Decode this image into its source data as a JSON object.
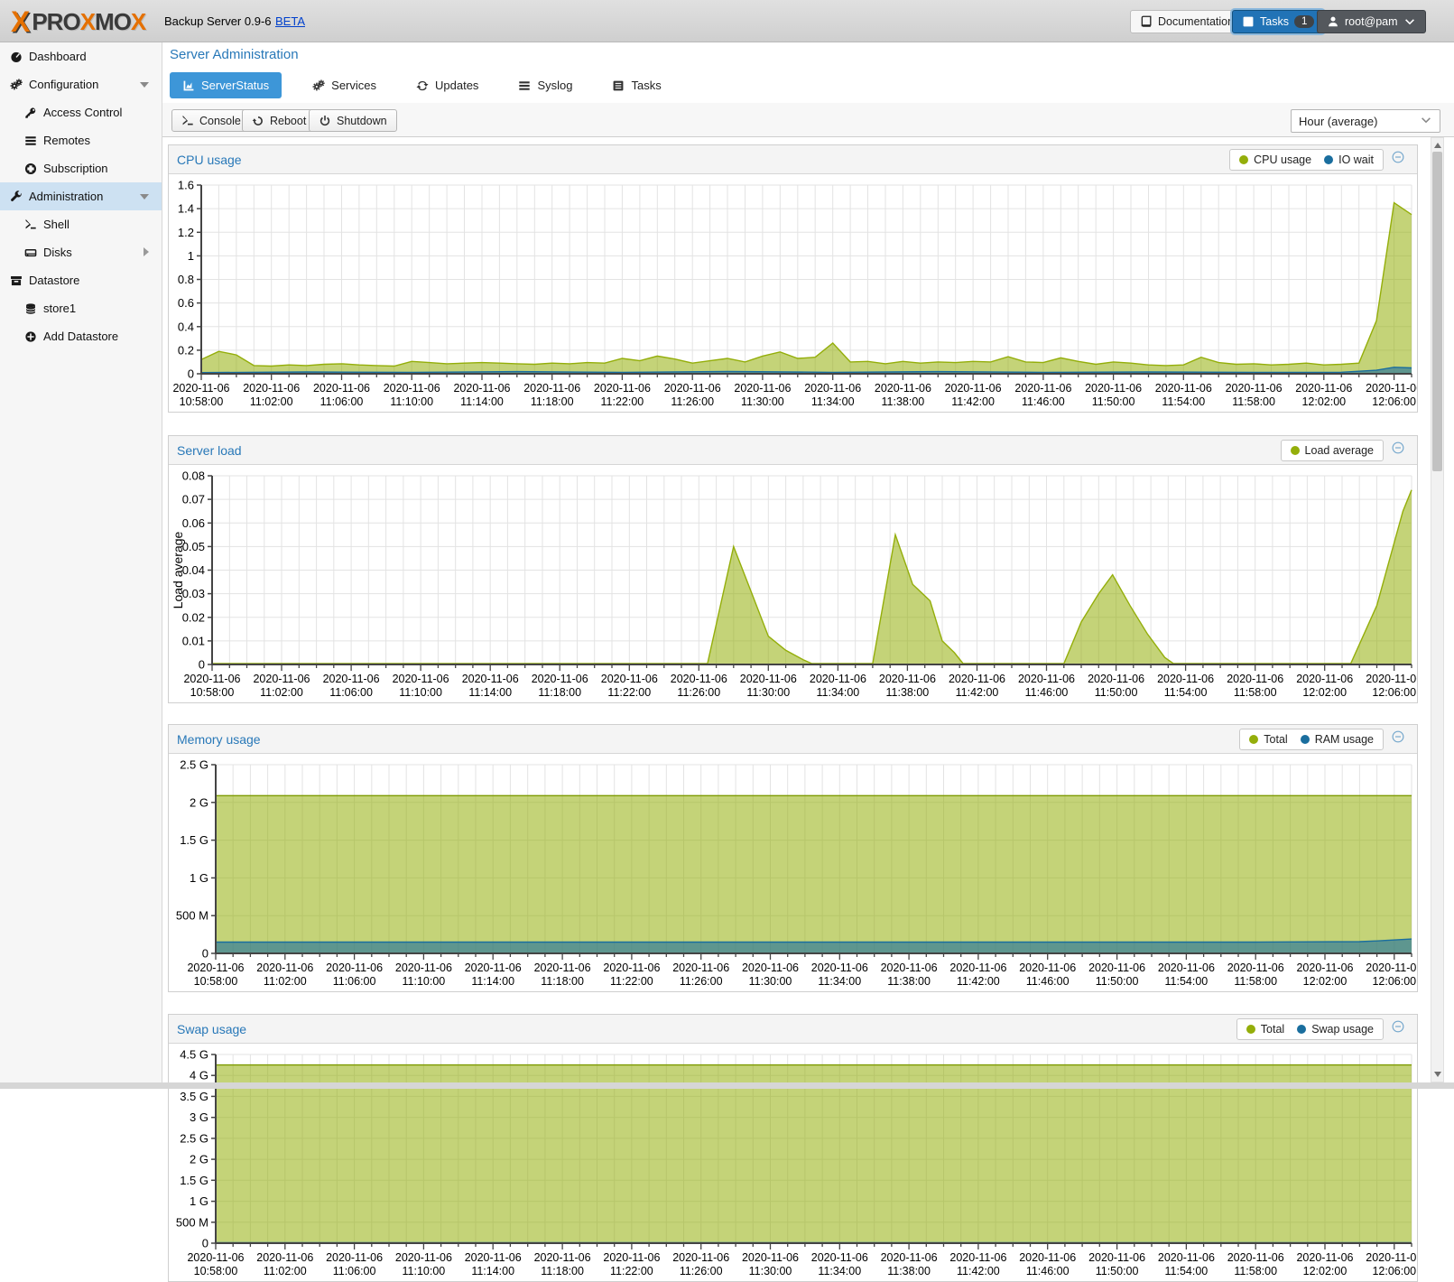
{
  "header": {
    "logo_segments": {
      "s1": "PRO",
      "s2": "X",
      "s3": "MO",
      "s4": "X"
    },
    "product": "Backup Server 0.9-6",
    "beta": "BETA",
    "documentation_label": "Documentation",
    "tasks_label": "Tasks",
    "tasks_badge": "1",
    "user_label": "root@pam"
  },
  "sidebar": {
    "items": [
      {
        "label": "Dashboard",
        "icon": "gauge"
      },
      {
        "label": "Configuration",
        "icon": "gears"
      },
      {
        "label": "Access Control",
        "icon": "key"
      },
      {
        "label": "Remotes",
        "icon": "list-rows"
      },
      {
        "label": "Subscription",
        "icon": "lifering"
      },
      {
        "label": "Administration",
        "icon": "wrench"
      },
      {
        "label": "Shell",
        "icon": "terminal"
      },
      {
        "label": "Disks",
        "icon": "disk"
      },
      {
        "label": "Datastore",
        "icon": "archive"
      },
      {
        "label": "store1",
        "icon": "database"
      },
      {
        "label": "Add Datastore",
        "icon": "plus-circle"
      }
    ]
  },
  "main": {
    "title": "Server Administration",
    "tabs": [
      {
        "label": "ServerStatus",
        "icon": "chart-area",
        "active": true
      },
      {
        "label": "Services",
        "icon": "gears"
      },
      {
        "label": "Updates",
        "icon": "refresh"
      },
      {
        "label": "Syslog",
        "icon": "list-rows"
      },
      {
        "label": "Tasks",
        "icon": "task-list"
      }
    ],
    "toolbar": {
      "console_label": "Console",
      "reboot_label": "Reboot",
      "shutdown_label": "Shutdown",
      "range_value": "Hour (average)"
    }
  },
  "panels": [
    {
      "title": "CPU usage",
      "legend": [
        {
          "label": "CPU usage",
          "color": "#94ae0a"
        },
        {
          "label": "IO wait",
          "color": "#1a6e9e"
        }
      ]
    },
    {
      "title": "Server load",
      "legend": [
        {
          "label": "Load average",
          "color": "#94ae0a"
        }
      ]
    },
    {
      "title": "Memory usage",
      "legend": [
        {
          "label": "Total",
          "color": "#94ae0a"
        },
        {
          "label": "RAM usage",
          "color": "#1a6e9e"
        }
      ]
    },
    {
      "title": "Swap usage",
      "legend": [
        {
          "label": "Total",
          "color": "#94ae0a"
        },
        {
          "label": "Swap usage",
          "color": "#1a6e9e"
        }
      ]
    }
  ],
  "chart_data": [
    {
      "type": "area",
      "title": "CPU usage",
      "ylabel": "",
      "ylim": [
        0,
        1.6
      ],
      "left_gutter": 36,
      "yticks": [
        {
          "v": 0,
          "l": "0"
        },
        {
          "v": 0.2,
          "l": "0.2"
        },
        {
          "v": 0.4,
          "l": "0.4"
        },
        {
          "v": 0.6,
          "l": "0.6"
        },
        {
          "v": 0.8,
          "l": "0.8"
        },
        {
          "v": 1,
          "l": "1"
        },
        {
          "v": 1.2,
          "l": "1.2"
        },
        {
          "v": 1.4,
          "l": "1.4"
        },
        {
          "v": 1.6,
          "l": "1.6"
        }
      ],
      "x_range": [
        0,
        69
      ],
      "x_date": "2020-11-06",
      "x_tick_times": [
        "10:58:00",
        "11:02:00",
        "11:06:00",
        "11:10:00",
        "11:14:00",
        "11:18:00",
        "11:22:00",
        "11:26:00",
        "11:30:00",
        "11:34:00",
        "11:38:00",
        "11:42:00",
        "11:46:00",
        "11:50:00",
        "11:54:00",
        "11:58:00",
        "12:02:00",
        "12:06:00"
      ],
      "series": [
        {
          "name": "CPU usage",
          "color": "#94ae0a",
          "fill": "rgba(148,174,10,0.55)",
          "points": [
            [
              0,
              0.12
            ],
            [
              1,
              0.19
            ],
            [
              2,
              0.16
            ],
            [
              3,
              0.07
            ],
            [
              4,
              0.065
            ],
            [
              5,
              0.075
            ],
            [
              6,
              0.07
            ],
            [
              7,
              0.08
            ],
            [
              8,
              0.085
            ],
            [
              9,
              0.075
            ],
            [
              10,
              0.07
            ],
            [
              11,
              0.065
            ],
            [
              12,
              0.105
            ],
            [
              13,
              0.095
            ],
            [
              14,
              0.085
            ],
            [
              15,
              0.09
            ],
            [
              16,
              0.095
            ],
            [
              17,
              0.09
            ],
            [
              18,
              0.085
            ],
            [
              19,
              0.08
            ],
            [
              20,
              0.09
            ],
            [
              21,
              0.085
            ],
            [
              22,
              0.095
            ],
            [
              23,
              0.09
            ],
            [
              24,
              0.13
            ],
            [
              25,
              0.11
            ],
            [
              26,
              0.15
            ],
            [
              27,
              0.125
            ],
            [
              28,
              0.09
            ],
            [
              29,
              0.11
            ],
            [
              30,
              0.13
            ],
            [
              31,
              0.1
            ],
            [
              32,
              0.15
            ],
            [
              33,
              0.185
            ],
            [
              34,
              0.13
            ],
            [
              35,
              0.14
            ],
            [
              36,
              0.26
            ],
            [
              37,
              0.1
            ],
            [
              38,
              0.105
            ],
            [
              39,
              0.085
            ],
            [
              40,
              0.105
            ],
            [
              41,
              0.09
            ],
            [
              42,
              0.1
            ],
            [
              43,
              0.095
            ],
            [
              44,
              0.105
            ],
            [
              45,
              0.1
            ],
            [
              46,
              0.145
            ],
            [
              47,
              0.1
            ],
            [
              48,
              0.095
            ],
            [
              49,
              0.135
            ],
            [
              50,
              0.105
            ],
            [
              51,
              0.08
            ],
            [
              52,
              0.1
            ],
            [
              53,
              0.09
            ],
            [
              54,
              0.075
            ],
            [
              55,
              0.07
            ],
            [
              56,
              0.075
            ],
            [
              57,
              0.14
            ],
            [
              58,
              0.095
            ],
            [
              59,
              0.08
            ],
            [
              60,
              0.085
            ],
            [
              61,
              0.075
            ],
            [
              62,
              0.08
            ],
            [
              63,
              0.09
            ],
            [
              64,
              0.075
            ],
            [
              65,
              0.08
            ],
            [
              66,
              0.09
            ],
            [
              67,
              0.45
            ],
            [
              68,
              1.45
            ],
            [
              69,
              1.35
            ]
          ]
        },
        {
          "name": "IO wait",
          "color": "#1a6e9e",
          "fill": "rgba(26,110,158,0.6)",
          "points": [
            [
              0,
              0.01
            ],
            [
              6,
              0.015
            ],
            [
              12,
              0.012
            ],
            [
              18,
              0.018
            ],
            [
              24,
              0.012
            ],
            [
              30,
              0.02
            ],
            [
              36,
              0.012
            ],
            [
              42,
              0.018
            ],
            [
              48,
              0.012
            ],
            [
              54,
              0.015
            ],
            [
              60,
              0.012
            ],
            [
              65,
              0.013
            ],
            [
              67,
              0.03
            ],
            [
              68,
              0.055
            ],
            [
              69,
              0.05
            ]
          ]
        }
      ]
    },
    {
      "type": "area",
      "title": "Server load",
      "ylabel": "Load average",
      "ylim": [
        0,
        0.08
      ],
      "left_gutter": 48,
      "yticks": [
        {
          "v": 0,
          "l": "0"
        },
        {
          "v": 0.01,
          "l": "0.01"
        },
        {
          "v": 0.02,
          "l": "0.02"
        },
        {
          "v": 0.03,
          "l": "0.03"
        },
        {
          "v": 0.04,
          "l": "0.04"
        },
        {
          "v": 0.05,
          "l": "0.05"
        },
        {
          "v": 0.06,
          "l": "0.06"
        },
        {
          "v": 0.07,
          "l": "0.07"
        },
        {
          "v": 0.08,
          "l": "0.08"
        }
      ],
      "x_range": [
        0,
        69
      ],
      "x_date": "2020-11-06",
      "x_tick_times": [
        "10:58:00",
        "11:02:00",
        "11:06:00",
        "11:10:00",
        "11:14:00",
        "11:18:00",
        "11:22:00",
        "11:26:00",
        "11:30:00",
        "11:34:00",
        "11:38:00",
        "11:42:00",
        "11:46:00",
        "11:50:00",
        "11:54:00",
        "11:58:00",
        "12:02:00",
        "12:06:00"
      ],
      "series": [
        {
          "name": "Load average",
          "color": "#94ae0a",
          "fill": "rgba(148,174,10,0.55)",
          "points": [
            [
              0,
              0.0004
            ],
            [
              28.5,
              0.0004
            ],
            [
              30,
              0.05
            ],
            [
              31,
              0.031
            ],
            [
              32,
              0.012
            ],
            [
              33,
              0.006
            ],
            [
              34,
              0.002
            ],
            [
              34.5,
              0.0004
            ],
            [
              38,
              0.0004
            ],
            [
              39.3,
              0.055
            ],
            [
              40.3,
              0.034
            ],
            [
              41.3,
              0.027
            ],
            [
              42,
              0.01
            ],
            [
              42.7,
              0.005
            ],
            [
              43.2,
              0.0004
            ],
            [
              49,
              0.0004
            ],
            [
              50,
              0.018
            ],
            [
              51,
              0.03
            ],
            [
              51.8,
              0.038
            ],
            [
              52.8,
              0.025
            ],
            [
              53.8,
              0.013
            ],
            [
              54.8,
              0.003
            ],
            [
              55.3,
              0.0004
            ],
            [
              65.5,
              0.0004
            ],
            [
              67,
              0.025
            ],
            [
              68.5,
              0.065
            ],
            [
              69,
              0.074
            ]
          ]
        }
      ]
    },
    {
      "type": "area",
      "title": "Memory usage",
      "ylabel": "",
      "ylim": [
        0,
        2.5
      ],
      "left_gutter": 52,
      "yticks": [
        {
          "v": 0,
          "l": "0"
        },
        {
          "v": 0.5,
          "l": "500 M"
        },
        {
          "v": 1,
          "l": "1 G"
        },
        {
          "v": 1.5,
          "l": "1.5 G"
        },
        {
          "v": 2,
          "l": "2 G"
        },
        {
          "v": 2.5,
          "l": "2.5 G"
        }
      ],
      "x_range": [
        0,
        69
      ],
      "x_date": "2020-11-06",
      "x_tick_times": [
        "10:58:00",
        "11:02:00",
        "11:06:00",
        "11:10:00",
        "11:14:00",
        "11:18:00",
        "11:22:00",
        "11:26:00",
        "11:30:00",
        "11:34:00",
        "11:38:00",
        "11:42:00",
        "11:46:00",
        "11:50:00",
        "11:54:00",
        "11:58:00",
        "12:02:00",
        "12:06:00"
      ],
      "series": [
        {
          "name": "Total",
          "color": "#7d9a00",
          "fill": "rgba(148,174,10,0.55)",
          "points": [
            [
              0,
              2.09
            ],
            [
              69,
              2.09
            ]
          ]
        },
        {
          "name": "RAM usage",
          "color": "#1a6e9e",
          "fill": "rgba(26,110,158,0.6)",
          "points": [
            [
              0,
              0.15
            ],
            [
              60,
              0.15
            ],
            [
              66,
              0.155
            ],
            [
              67,
              0.165
            ],
            [
              69,
              0.19
            ]
          ]
        }
      ]
    },
    {
      "type": "area",
      "title": "Swap usage",
      "ylabel": "",
      "ylim": [
        0,
        4.5
      ],
      "left_gutter": 52,
      "yticks": [
        {
          "v": 0,
          "l": "0"
        },
        {
          "v": 0.5,
          "l": "500 M"
        },
        {
          "v": 1,
          "l": "1 G"
        },
        {
          "v": 1.5,
          "l": "1.5 G"
        },
        {
          "v": 2,
          "l": "2 G"
        },
        {
          "v": 2.5,
          "l": "2.5 G"
        },
        {
          "v": 3,
          "l": "3 G"
        },
        {
          "v": 3.5,
          "l": "3.5 G"
        },
        {
          "v": 4,
          "l": "4 G"
        },
        {
          "v": 4.5,
          "l": "4.5 G"
        }
      ],
      "x_range": [
        0,
        69
      ],
      "x_date": "2020-11-06",
      "x_tick_times": [
        "10:58:00",
        "11:02:00",
        "11:06:00",
        "11:10:00",
        "11:14:00",
        "11:18:00",
        "11:22:00",
        "11:26:00",
        "11:30:00",
        "11:34:00",
        "11:38:00",
        "11:42:00",
        "11:46:00",
        "11:50:00",
        "11:54:00",
        "11:58:00",
        "12:02:00",
        "12:06:00"
      ],
      "series": [
        {
          "name": "Total",
          "color": "#7d9a00",
          "fill": "rgba(148,174,10,0.55)",
          "points": [
            [
              0,
              4.25
            ],
            [
              69,
              4.25
            ]
          ]
        },
        {
          "name": "Swap usage",
          "color": "#1a6e9e",
          "fill": "rgba(26,110,158,0.6)",
          "points": [
            [
              0,
              0.01
            ],
            [
              69,
              0.01
            ]
          ]
        }
      ]
    }
  ]
}
